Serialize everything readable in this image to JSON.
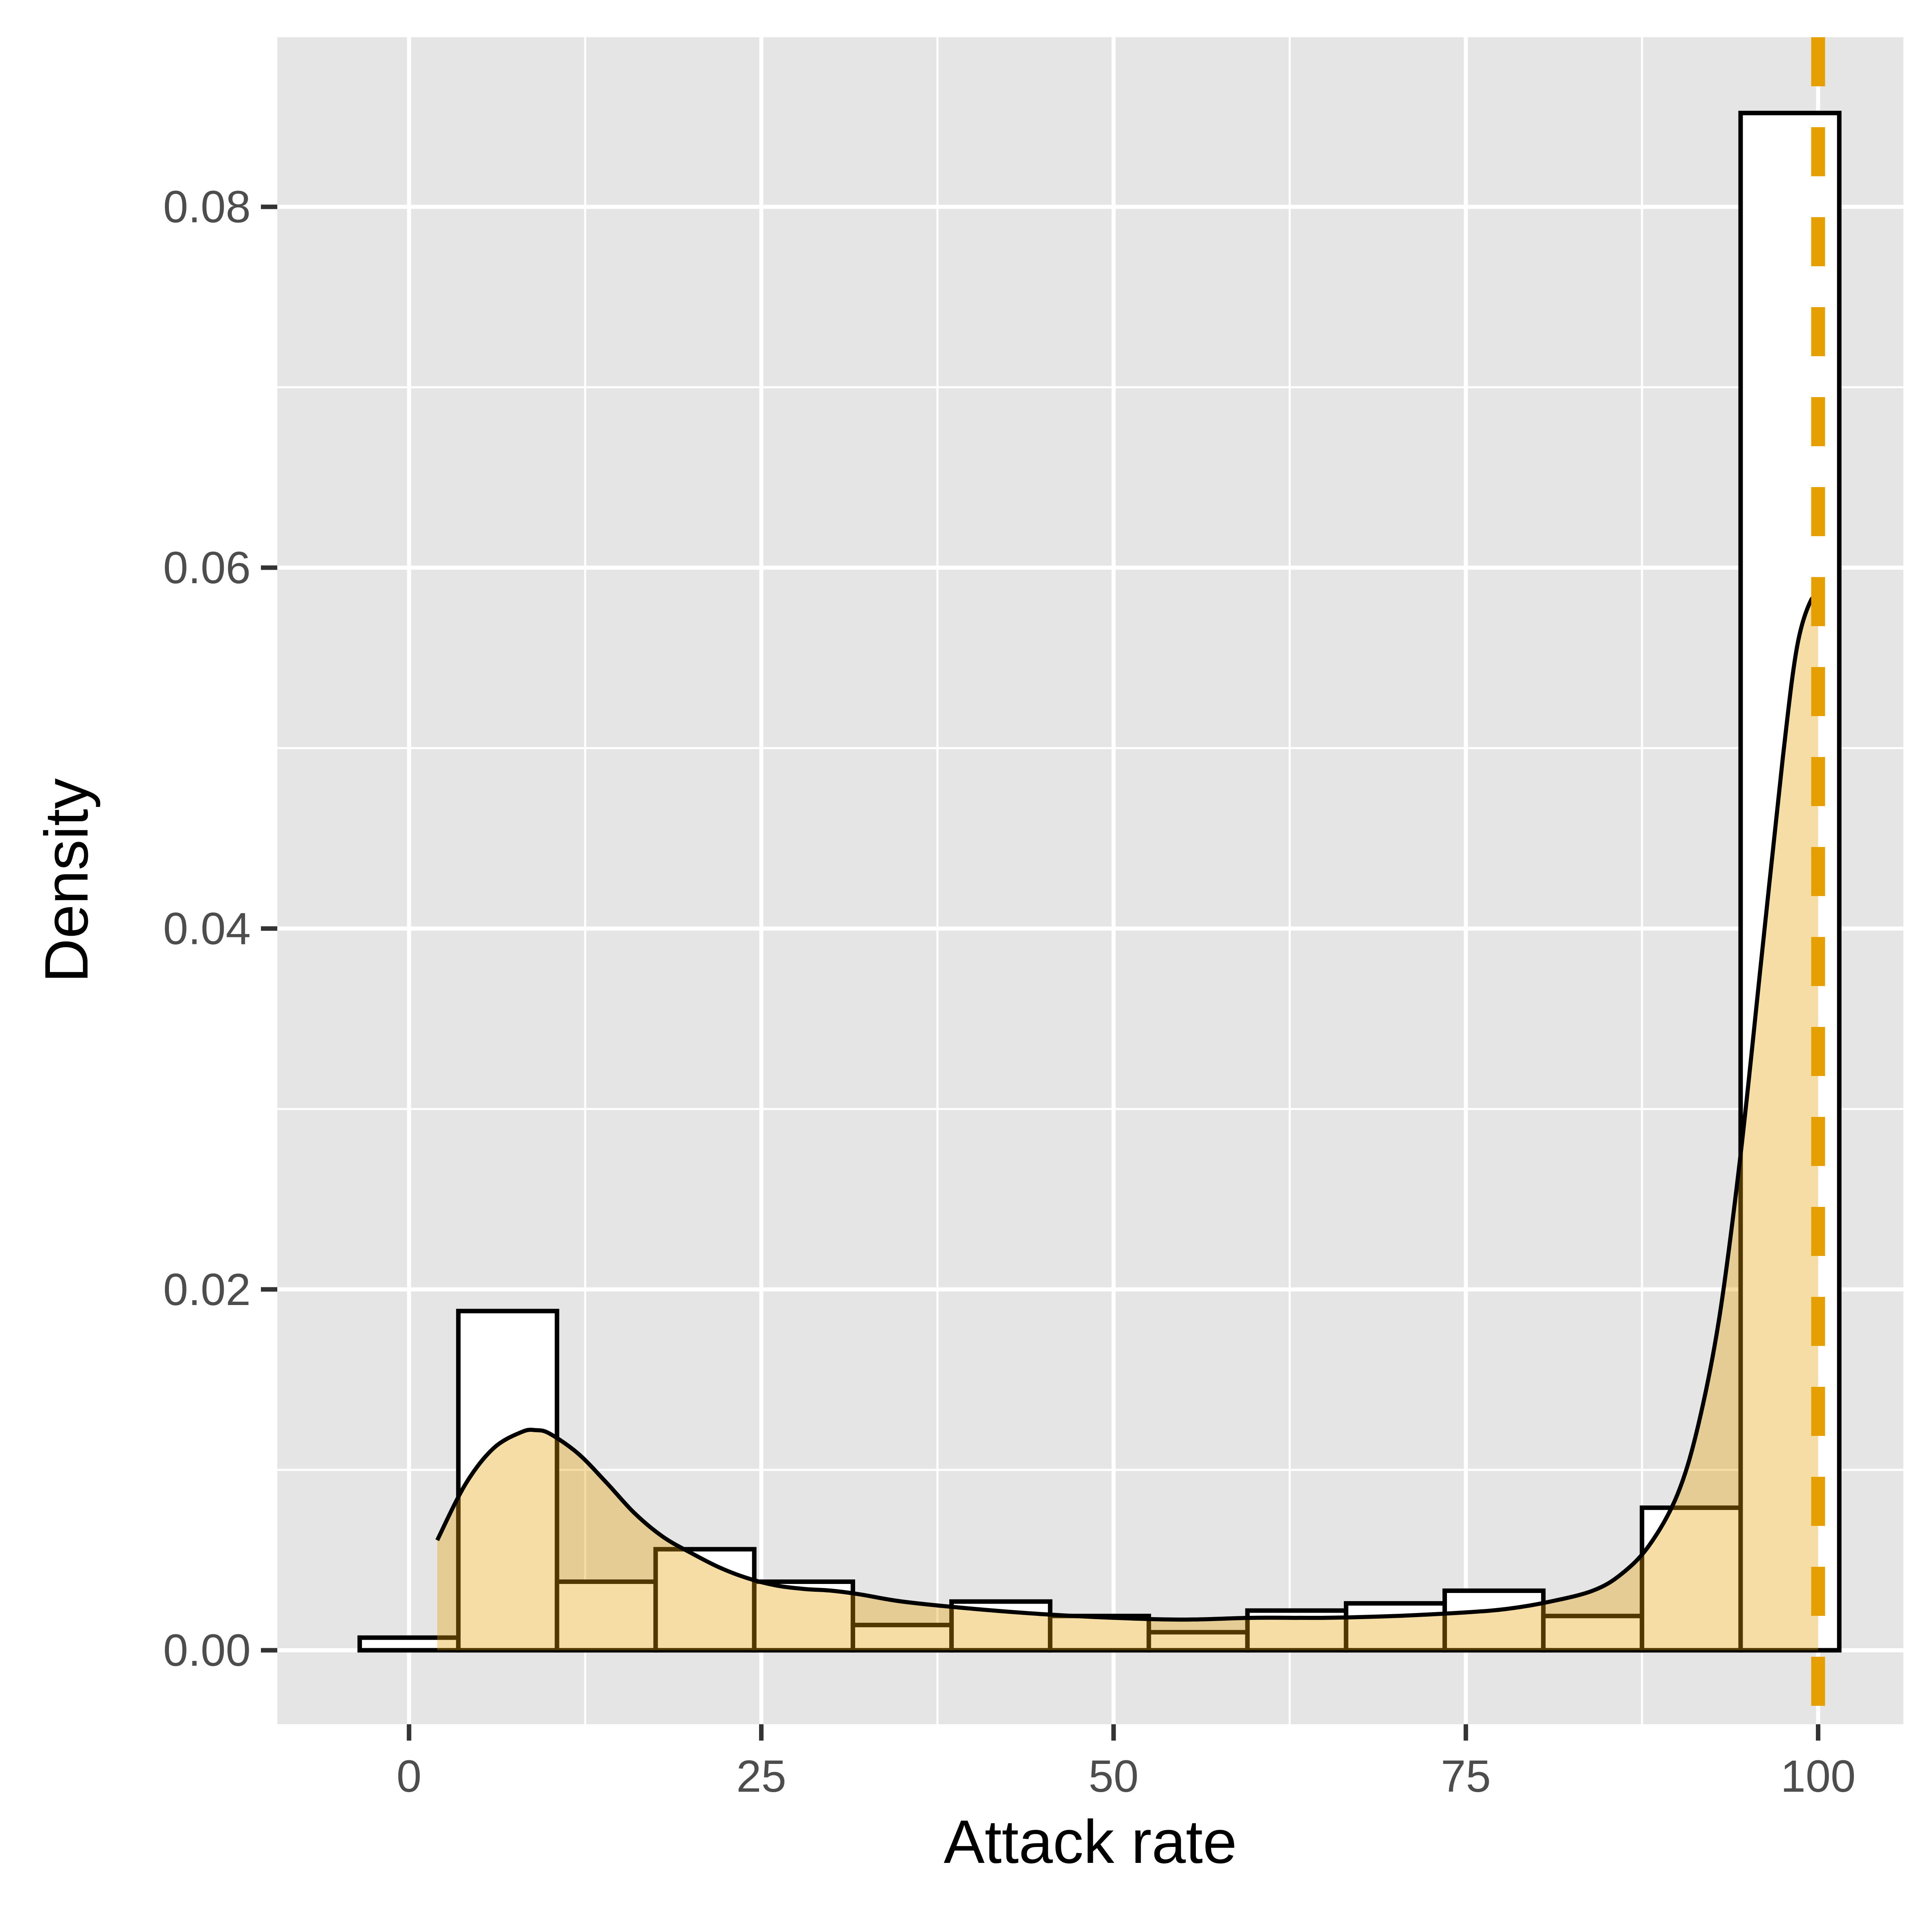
{
  "chart_data": {
    "type": "bar",
    "subtype": "histogram-with-density",
    "title": "",
    "xlabel": "Attack rate",
    "ylabel": "Density",
    "xlim": [
      -9.35,
      106.05
    ],
    "ylim": [
      -0.0041,
      0.0894
    ],
    "x_ticks": [
      0,
      25,
      50,
      75,
      100
    ],
    "y_ticks": [
      0.0,
      0.02,
      0.04,
      0.06,
      0.08
    ],
    "x_tick_labels": [
      "0",
      "25",
      "50",
      "75",
      "100"
    ],
    "y_tick_labels": [
      "0.00",
      "0.02",
      "0.04",
      "0.06",
      "0.08"
    ],
    "grid": true,
    "background": "#e5e5e5",
    "colors": {
      "panel": "#e5e5e5",
      "grid": "#ffffff",
      "density_fill": "#e69f00",
      "density_fill_opacity": 0.35,
      "outline": "#000000",
      "reference_line": "#e69f00"
    },
    "series": [
      {
        "name": "histogram",
        "bin_width": 7,
        "bins": [
          {
            "x0": -3.5,
            "x1": 3.5,
            "value": 0.0007
          },
          {
            "x0": 3.5,
            "x1": 10.5,
            "value": 0.0188
          },
          {
            "x0": 10.5,
            "x1": 17.5,
            "value": 0.0038
          },
          {
            "x0": 17.5,
            "x1": 24.5,
            "value": 0.0056
          },
          {
            "x0": 24.5,
            "x1": 31.5,
            "value": 0.0038
          },
          {
            "x0": 31.5,
            "x1": 38.5,
            "value": 0.0014
          },
          {
            "x0": 38.5,
            "x1": 45.5,
            "value": 0.0027
          },
          {
            "x0": 45.5,
            "x1": 52.5,
            "value": 0.0019
          },
          {
            "x0": 52.5,
            "x1": 59.5,
            "value": 0.001
          },
          {
            "x0": 59.5,
            "x1": 66.5,
            "value": 0.0022
          },
          {
            "x0": 66.5,
            "x1": 73.5,
            "value": 0.0026
          },
          {
            "x0": 73.5,
            "x1": 80.5,
            "value": 0.0033
          },
          {
            "x0": 80.5,
            "x1": 87.5,
            "value": 0.0019
          },
          {
            "x0": 87.5,
            "x1": 94.5,
            "value": 0.0079
          },
          {
            "x0": 94.5,
            "x1": 101.5,
            "value": 0.0852
          }
        ]
      },
      {
        "name": "density",
        "x": [
          2.0,
          4.0,
          6.0,
          8.0,
          9.0,
          10.0,
          12.0,
          14.0,
          16.0,
          18.0,
          20.0,
          22.0,
          24.0,
          26.0,
          28.0,
          30.0,
          32.0,
          35.0,
          40.0,
          45.0,
          50.0,
          55.0,
          60.0,
          65.0,
          70.0,
          75.0,
          78.0,
          81.0,
          84.0,
          86.0,
          88.0,
          90.0,
          91.5,
          93.0,
          94.5,
          96.0,
          97.5,
          98.5,
          99.5,
          100.0
        ],
        "values": [
          0.0061,
          0.0092,
          0.0112,
          0.0121,
          0.0122,
          0.012,
          0.0109,
          0.0093,
          0.0076,
          0.0063,
          0.0054,
          0.0046,
          0.004,
          0.0036,
          0.0034,
          0.0033,
          0.0031,
          0.0027,
          0.0023,
          0.002,
          0.0018,
          0.0017,
          0.0018,
          0.0018,
          0.0019,
          0.0021,
          0.0023,
          0.0027,
          0.0033,
          0.0042,
          0.0058,
          0.0086,
          0.0125,
          0.0185,
          0.0275,
          0.0385,
          0.0495,
          0.0556,
          0.0582,
          0.058
        ]
      },
      {
        "name": "reference-line",
        "x": 100
      }
    ]
  }
}
